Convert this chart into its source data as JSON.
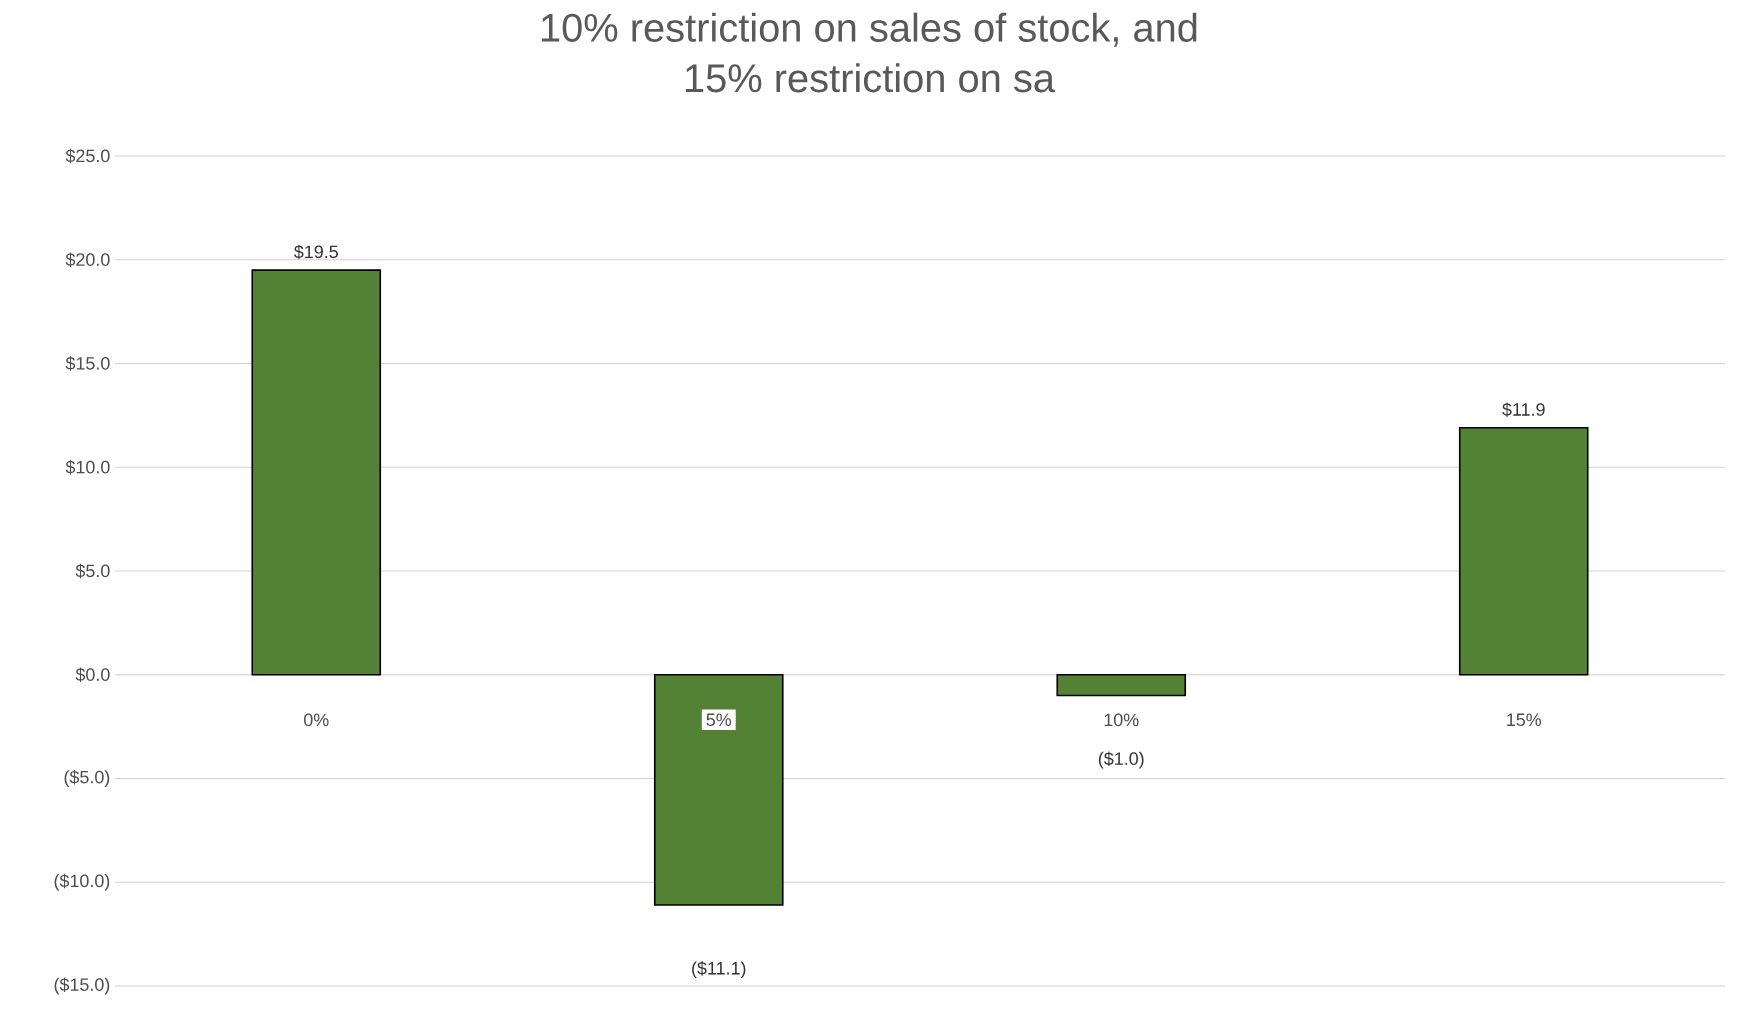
{
  "chart_data": {
    "type": "bar",
    "title": "10% restriction on sales of stock, and\n15% restriction  on sa",
    "categories": [
      "0%",
      "5%",
      "10%",
      "15%"
    ],
    "values": [
      19.5,
      -11.1,
      -1.0,
      11.9
    ],
    "value_labels": [
      "$19.5",
      "($11.1)",
      "($1.0)",
      "$11.9"
    ],
    "color": "#548235",
    "ylim": [
      -15,
      25
    ],
    "yticks": [
      {
        "value": -15,
        "label": "($15.0)"
      },
      {
        "value": -10,
        "label": "($10.0)"
      },
      {
        "value": -5,
        "label": "($5.0)"
      },
      {
        "value": 0,
        "label": "$0.0"
      },
      {
        "value": 5,
        "label": "$5.0"
      },
      {
        "value": 10,
        "label": "$10.0"
      },
      {
        "value": 15,
        "label": "$15.0"
      },
      {
        "value": 20,
        "label": "$20.0"
      },
      {
        "value": 25,
        "label": "$25.0"
      }
    ],
    "grid": "y"
  }
}
